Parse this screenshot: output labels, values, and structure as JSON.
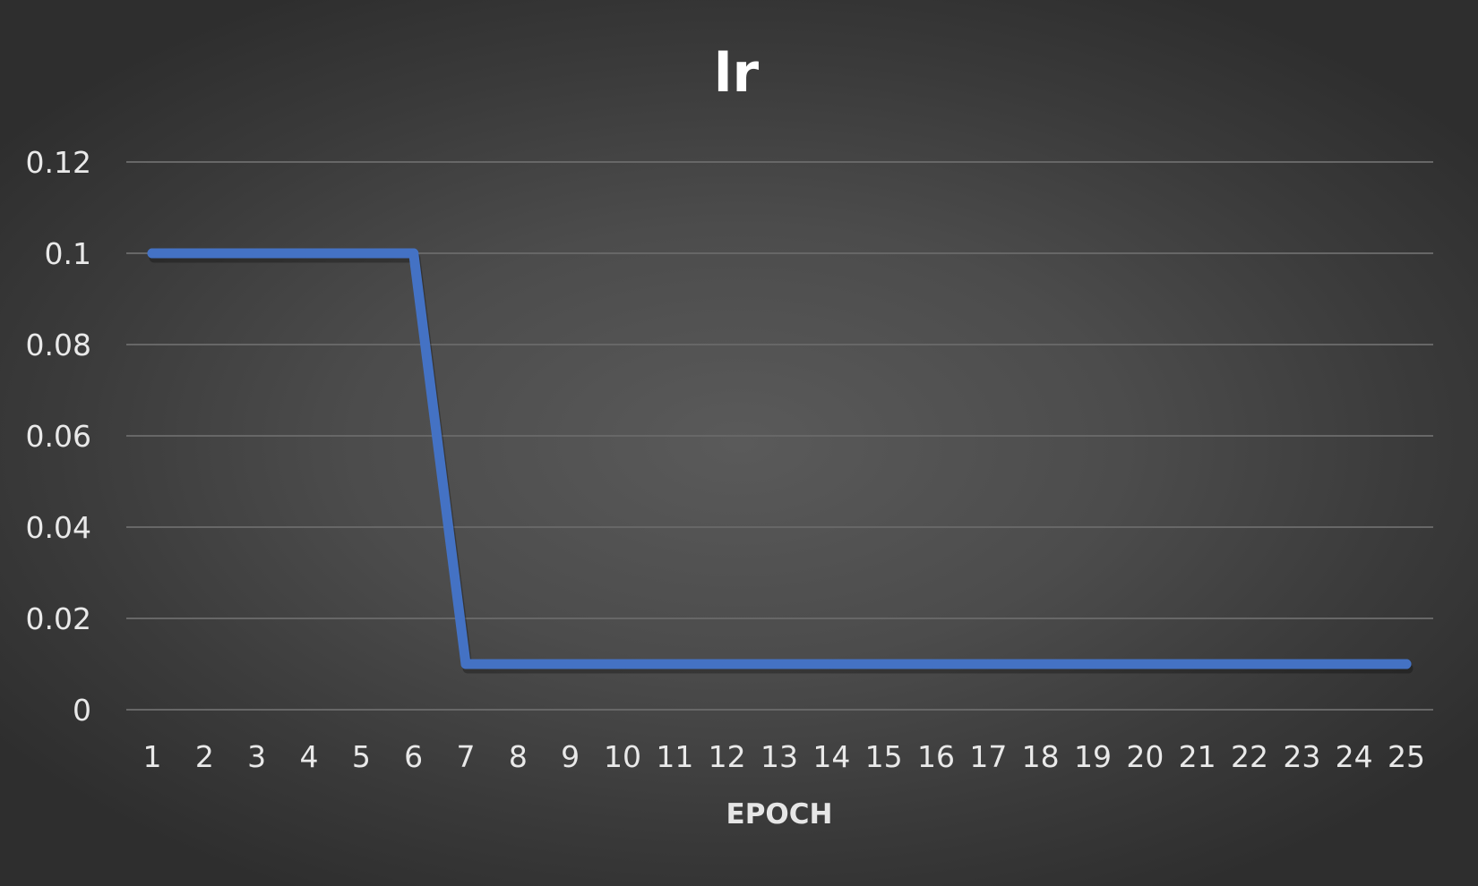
{
  "chart_data": {
    "type": "line",
    "title": "lr",
    "xlabel": "EPOCH",
    "ylabel": "",
    "categories": [
      "1",
      "2",
      "3",
      "4",
      "5",
      "6",
      "7",
      "8",
      "9",
      "10",
      "11",
      "12",
      "13",
      "14",
      "15",
      "16",
      "17",
      "18",
      "19",
      "20",
      "21",
      "22",
      "23",
      "24",
      "25"
    ],
    "series": [
      {
        "values": [
          0.1,
          0.1,
          0.1,
          0.1,
          0.1,
          0.1,
          0.01,
          0.01,
          0.01,
          0.01,
          0.01,
          0.01,
          0.01,
          0.01,
          0.01,
          0.01,
          0.01,
          0.01,
          0.01,
          0.01,
          0.01,
          0.01,
          0.01,
          0.01,
          0.01
        ],
        "color": "#4472c4"
      }
    ],
    "ylim": [
      0,
      0.12
    ],
    "yticks": [
      "0",
      "0.02",
      "0.04",
      "0.06",
      "0.08",
      "0.1",
      "0.12"
    ],
    "grid": true,
    "legend": "none"
  }
}
